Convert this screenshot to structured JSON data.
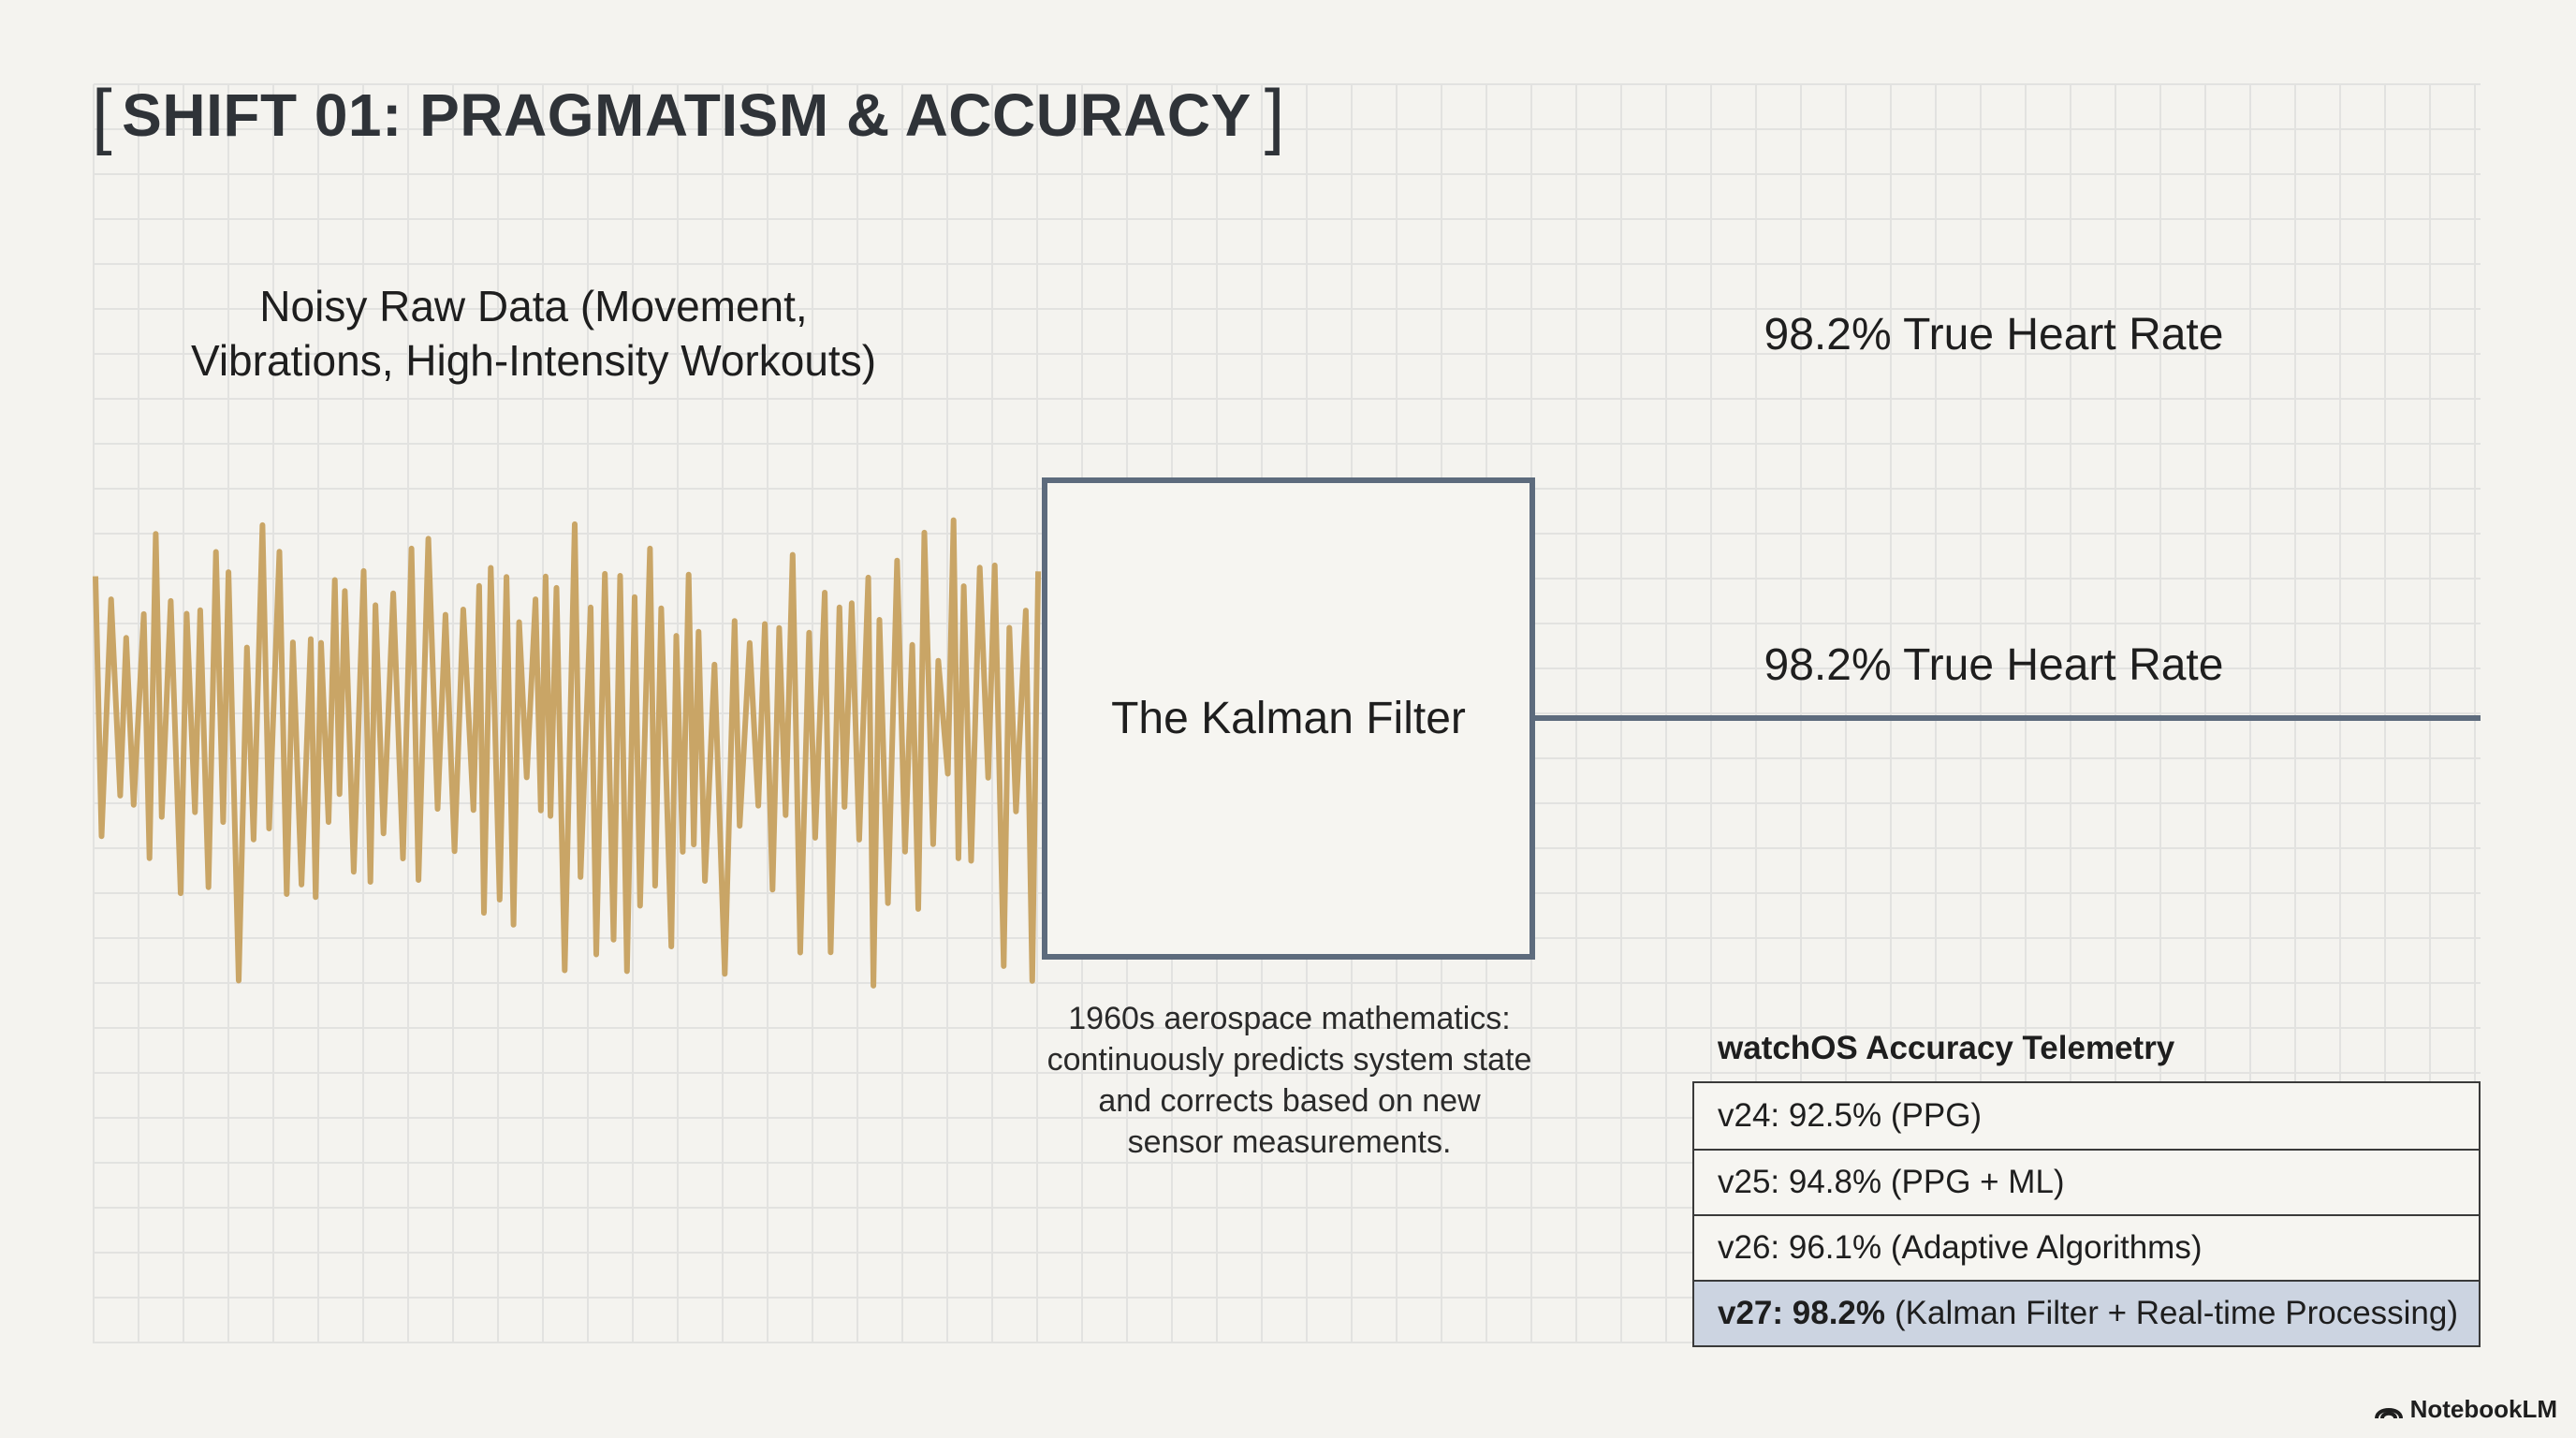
{
  "title": "SHIFT 01: PRAGMATISM & ACCURACY",
  "title_brackets": {
    "open": "[",
    "close": "]"
  },
  "noisy_label": {
    "line1": "Noisy Raw Data (Movement,",
    "line2": "Vibrations, High-Intensity Workouts)"
  },
  "true_rate_top": "98.2% True Heart Rate",
  "true_rate_line": "98.2% True Heart Rate",
  "filter": {
    "label": "The Kalman Filter",
    "description": [
      "1960s aerospace mathematics:",
      "continuously predicts system state",
      "and corrects based on new",
      "sensor measurements."
    ]
  },
  "telemetry": {
    "title": "watchOS Accuracy Telemetry",
    "rows": [
      {
        "version": "",
        "text": "v24: 92.5% (PPG)"
      },
      {
        "version": "",
        "text": "v25: 94.8% (PPG + ML)"
      },
      {
        "version": "",
        "text": "v26: 96.1% (Adaptive Algorithms)"
      },
      {
        "version": "v27: 98.2%",
        "text": "(Kalman Filter + Real-time Processing)"
      }
    ]
  },
  "brand": "NotebookLM",
  "colors": {
    "background": "#f4f3ef",
    "grid": "#e2e2e0",
    "noise_wave": "#c9a566",
    "filter_border": "#5d6b7d",
    "output_line": "#5d6b7d",
    "highlight_row": "#ccd4e1"
  },
  "icons": {
    "brand": "notebooklm-logo-icon"
  }
}
